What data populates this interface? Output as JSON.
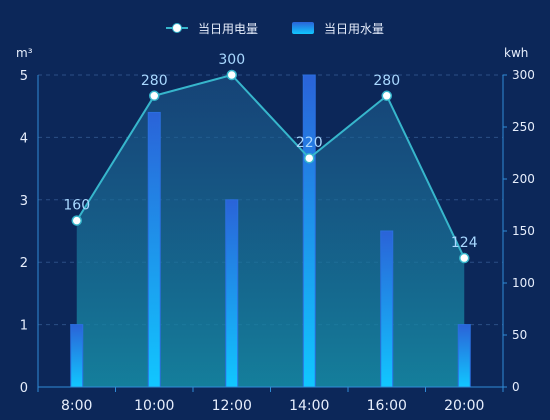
{
  "chart_data": {
    "type": "bar+line",
    "categories": [
      "8:00",
      "10:00",
      "12:00",
      "14:00",
      "16:00",
      "20:00"
    ],
    "legend": [
      {
        "name": "当日用电量",
        "kind": "line"
      },
      {
        "name": "当日用水量",
        "kind": "bar"
      }
    ],
    "series": [
      {
        "name": "当日用电量",
        "type": "line",
        "axis": "right",
        "values": [
          160,
          280,
          300,
          220,
          280,
          124
        ]
      },
      {
        "name": "当日用水量",
        "type": "bar",
        "axis": "left",
        "values": [
          1,
          4.4,
          3,
          5,
          2.5,
          1
        ]
      }
    ],
    "y_left": {
      "unit": "m³",
      "min": 0,
      "max": 5,
      "ticks": [
        "0",
        "1",
        "2",
        "3",
        "4",
        "5"
      ]
    },
    "y_right": {
      "unit": "kwh",
      "min": 0,
      "max": 300,
      "ticks": [
        "0",
        "50",
        "100",
        "150",
        "200",
        "250",
        "300"
      ]
    },
    "data_labels": [
      "160",
      "280",
      "300",
      "220",
      "280",
      "124"
    ],
    "grid": true,
    "legend_position": "top-center",
    "colors": {
      "background": "#0c2759",
      "axis": "#2f8bd6",
      "grid": "#2b4f86",
      "line": "#37b6cc",
      "area_top": "#1d5a8f",
      "area_bottom": "#168ea7",
      "bar_top": "#2a63d8",
      "bar_bottom": "#11c7ff",
      "label": "#a9d8ff",
      "text": "#e7eefc"
    }
  }
}
